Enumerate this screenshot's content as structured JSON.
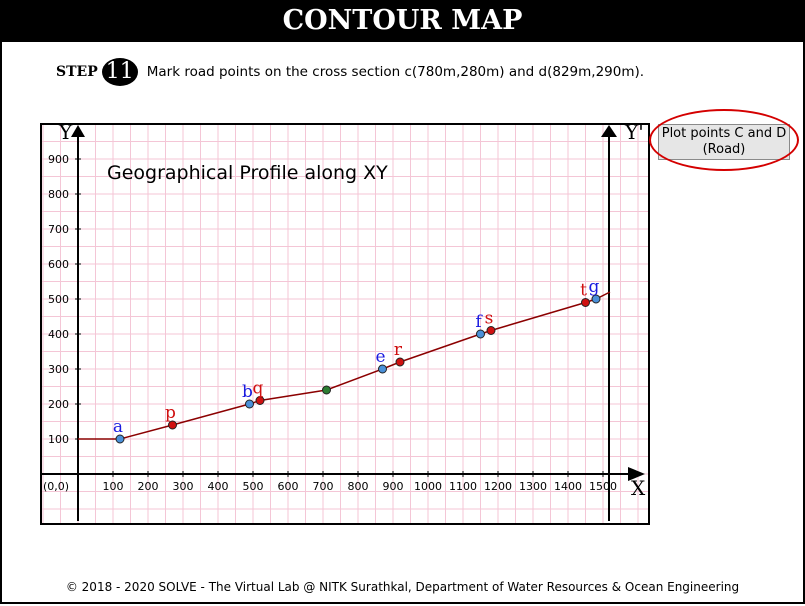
{
  "header": {
    "title": "CONTOUR MAP"
  },
  "step": {
    "label": "STEP",
    "number": "11",
    "instruction": "Mark road points on the cross section c(780m,280m) and d(829m,290m)."
  },
  "plot_button": {
    "label": "Plot points C and D (Road)"
  },
  "footer": {
    "text": "© 2018 - 2020 SOLVE - The Virtual Lab @ NITK Surathkal, Department of Water Resources & Ocean Engineering"
  },
  "colors": {
    "header_bg": "#000000",
    "grid": "#f4c6d6",
    "profile_line": "#8b0000",
    "blue_point": "#4a90d9",
    "red_point": "#d01010",
    "green_point": "#2e7d32",
    "highlight": "#d40000"
  },
  "chart_data": {
    "type": "line",
    "title": "Geographical Profile along XY",
    "origin_label": "(0,0)",
    "x_axis_label": "X",
    "y_axis_label": "Y",
    "x_axis_label_right": "X'",
    "y_axis_label_right": "Y'",
    "xlim": [
      -100,
      1620
    ],
    "ylim": [
      -100,
      1000
    ],
    "x_ticks": [
      100,
      200,
      300,
      400,
      500,
      600,
      700,
      800,
      900,
      1000,
      1100,
      1200,
      1300,
      1400,
      1500
    ],
    "y_ticks": [
      100,
      200,
      300,
      400,
      500,
      600,
      700,
      800,
      900
    ],
    "grid": true,
    "series": [
      {
        "type": "line",
        "x": [
          0,
          120,
          270,
          490,
          520,
          710,
          870,
          920,
          1150,
          1180,
          1450,
          1480,
          1520
        ],
        "y": [
          100,
          100,
          140,
          200,
          210,
          240,
          300,
          320,
          400,
          410,
          490,
          500,
          520
        ]
      }
    ],
    "points": [
      {
        "label": "a",
        "x": 120,
        "y": 100,
        "color": "blue"
      },
      {
        "label": "p",
        "x": 270,
        "y": 140,
        "color": "red"
      },
      {
        "label": "b",
        "x": 490,
        "y": 200,
        "color": "blue"
      },
      {
        "label": "q",
        "x": 520,
        "y": 210,
        "color": "red"
      },
      {
        "label": "",
        "x": 710,
        "y": 240,
        "color": "green"
      },
      {
        "label": "e",
        "x": 870,
        "y": 300,
        "color": "blue"
      },
      {
        "label": "r",
        "x": 920,
        "y": 320,
        "color": "red"
      },
      {
        "label": "f",
        "x": 1150,
        "y": 400,
        "color": "blue"
      },
      {
        "label": "s",
        "x": 1180,
        "y": 410,
        "color": "red"
      },
      {
        "label": "t",
        "x": 1450,
        "y": 490,
        "color": "red"
      },
      {
        "label": "g",
        "x": 1480,
        "y": 500,
        "color": "blue"
      }
    ]
  }
}
